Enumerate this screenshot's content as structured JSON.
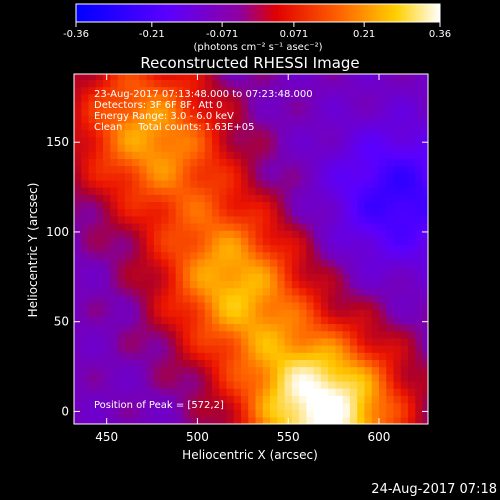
{
  "chart_data": {
    "type": "heatmap",
    "title": "Reconstructed RHESSI Image",
    "xlabel": "Heliocentric X (arcsec)",
    "ylabel": "Heliocentric Y (arcsec)",
    "xlim": [
      432,
      627
    ],
    "ylim": [
      -7,
      188
    ],
    "x_ticks": [
      450,
      500,
      550,
      600
    ],
    "y_ticks": [
      0,
      50,
      100,
      150
    ],
    "colorbar": {
      "min": -0.36,
      "max": 0.36,
      "ticks": [
        "-0.36",
        "-0.21",
        "-0.071",
        "0.071",
        "0.21",
        "0.36"
      ],
      "label": "(photons cm⁻² s⁻¹ asec⁻²)",
      "colors": [
        "#0000ff",
        "#5a00ff",
        "#8f00a0",
        "#ff0000",
        "#ff8000",
        "#ffff00",
        "#ffffff"
      ]
    },
    "annotations": [
      "23-Aug-2017 07:13:48.000 to 07:23:48.000",
      "Detectors: 3F 6F 8F, Att 0",
      "Energy Range: 3.0 - 6.0 keV",
      "Clean     Total counts: 1.63E+05"
    ],
    "peak_label": "Position of Peak = [572,2]",
    "peak": [
      572,
      2
    ],
    "sources": [
      {
        "x": 572,
        "y": 2,
        "value": 0.36
      },
      {
        "x": 470,
        "y": 155,
        "value": 0.16
      },
      {
        "x": 520,
        "y": 70,
        "value": 0.15
      }
    ],
    "negative_region": {
      "x": 610,
      "y": 120,
      "value": -0.25
    }
  },
  "footer_timestamp": "24-Aug-2017 07:18"
}
